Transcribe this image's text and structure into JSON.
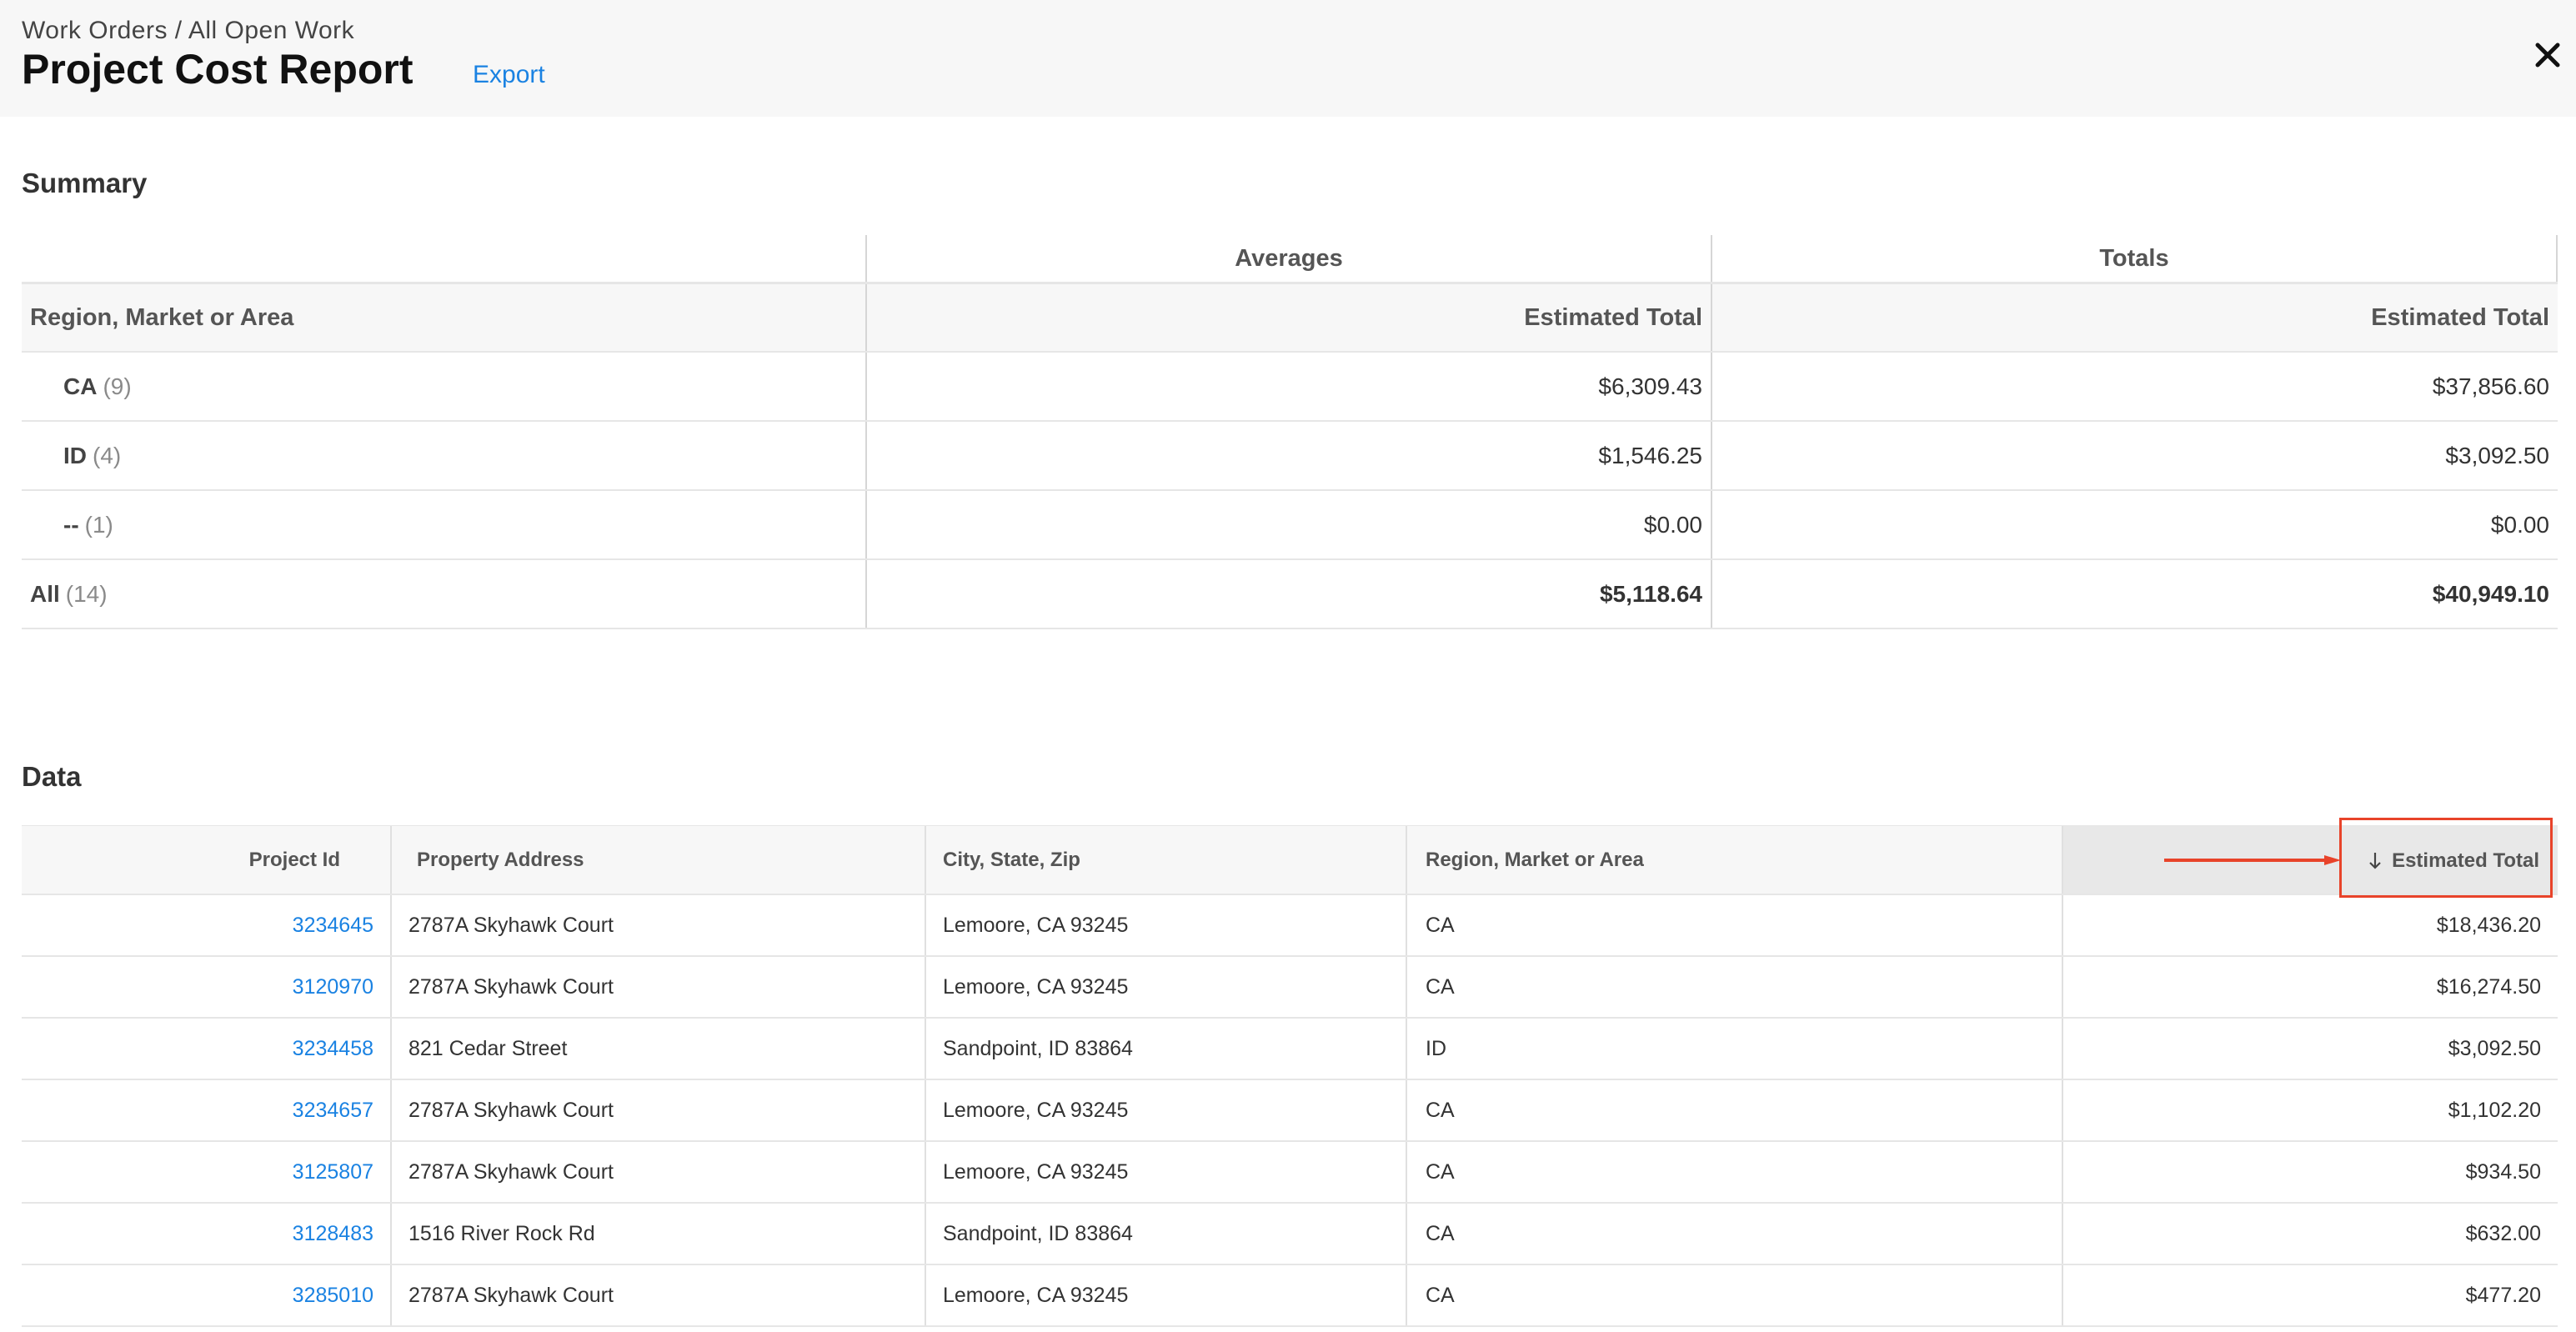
{
  "header": {
    "breadcrumb": "Work Orders / All Open Work",
    "title": "Project Cost Report",
    "export_label": "Export"
  },
  "summary": {
    "title": "Summary",
    "group_headers": [
      "Averages",
      "Totals"
    ],
    "columns": [
      "Region, Market or Area",
      "Estimated Total",
      "Estimated Total"
    ],
    "rows": [
      {
        "label": "CA",
        "count": "(9)",
        "average": "$6,309.43",
        "total": "$37,856.60"
      },
      {
        "label": "ID",
        "count": "(4)",
        "average": "$1,546.25",
        "total": "$3,092.50"
      },
      {
        "label": "--",
        "count": "(1)",
        "average": "$0.00",
        "total": "$0.00"
      }
    ],
    "all_row": {
      "label": "All",
      "count": "(14)",
      "average": "$5,118.64",
      "total": "$40,949.10"
    }
  },
  "data": {
    "title": "Data",
    "columns": [
      "Project Id",
      "Property Address",
      "City, State, Zip",
      "Region, Market or Area",
      "Estimated Total"
    ],
    "sort_icon": "arrow-down-icon",
    "rows": [
      {
        "id": "3234645",
        "address": "2787A Skyhawk Court",
        "city": "Lemoore, CA 93245",
        "region": "CA",
        "total": "$18,436.20"
      },
      {
        "id": "3120970",
        "address": "2787A Skyhawk Court",
        "city": "Lemoore, CA 93245",
        "region": "CA",
        "total": "$16,274.50"
      },
      {
        "id": "3234458",
        "address": "821 Cedar Street",
        "city": "Sandpoint, ID 83864",
        "region": "ID",
        "total": "$3,092.50"
      },
      {
        "id": "3234657",
        "address": "2787A Skyhawk Court",
        "city": "Lemoore, CA 93245",
        "region": "CA",
        "total": "$1,102.20"
      },
      {
        "id": "3125807",
        "address": "2787A Skyhawk Court",
        "city": "Lemoore, CA 93245",
        "region": "CA",
        "total": "$934.50"
      },
      {
        "id": "3128483",
        "address": "1516 River Rock Rd",
        "city": "Sandpoint, ID 83864",
        "region": "CA",
        "total": "$632.00"
      },
      {
        "id": "3285010",
        "address": "2787A Skyhawk Court",
        "city": "Lemoore, CA 93245",
        "region": "CA",
        "total": "$477.20"
      }
    ]
  },
  "colors": {
    "link": "#1a82e2",
    "annotation": "#e8432a",
    "header_bg": "#f7f7f7"
  }
}
